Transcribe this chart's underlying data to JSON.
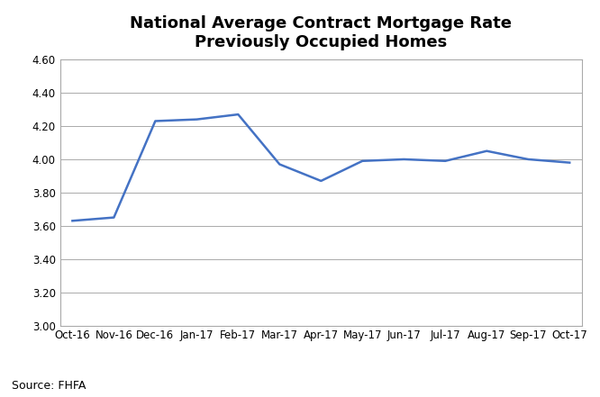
{
  "title_line1": "National Average Contract Mortgage Rate",
  "title_line2": "Previously Occupied Homes",
  "source": "Source: FHFA",
  "x_labels": [
    "Oct-16",
    "Nov-16",
    "Dec-16",
    "Jan-17",
    "Feb-17",
    "Mar-17",
    "Apr-17",
    "May-17",
    "Jun-17",
    "Jul-17",
    "Aug-17",
    "Sep-17",
    "Oct-17"
  ],
  "y_values": [
    3.63,
    3.65,
    4.23,
    4.24,
    4.27,
    3.97,
    3.87,
    3.99,
    4.0,
    3.99,
    4.05,
    4.0,
    3.98
  ],
  "line_color": "#4472C4",
  "line_width": 1.8,
  "ylim_min": 3.0,
  "ylim_max": 4.6,
  "yticks": [
    3.0,
    3.2,
    3.4,
    3.6,
    3.8,
    4.0,
    4.2,
    4.4,
    4.6
  ],
  "grid_color": "#AAAAAA",
  "grid_linewidth": 0.7,
  "bg_color": "#FFFFFF",
  "title_fontsize": 13,
  "tick_fontsize": 8.5,
  "source_fontsize": 9,
  "border_color": "#AAAAAA"
}
